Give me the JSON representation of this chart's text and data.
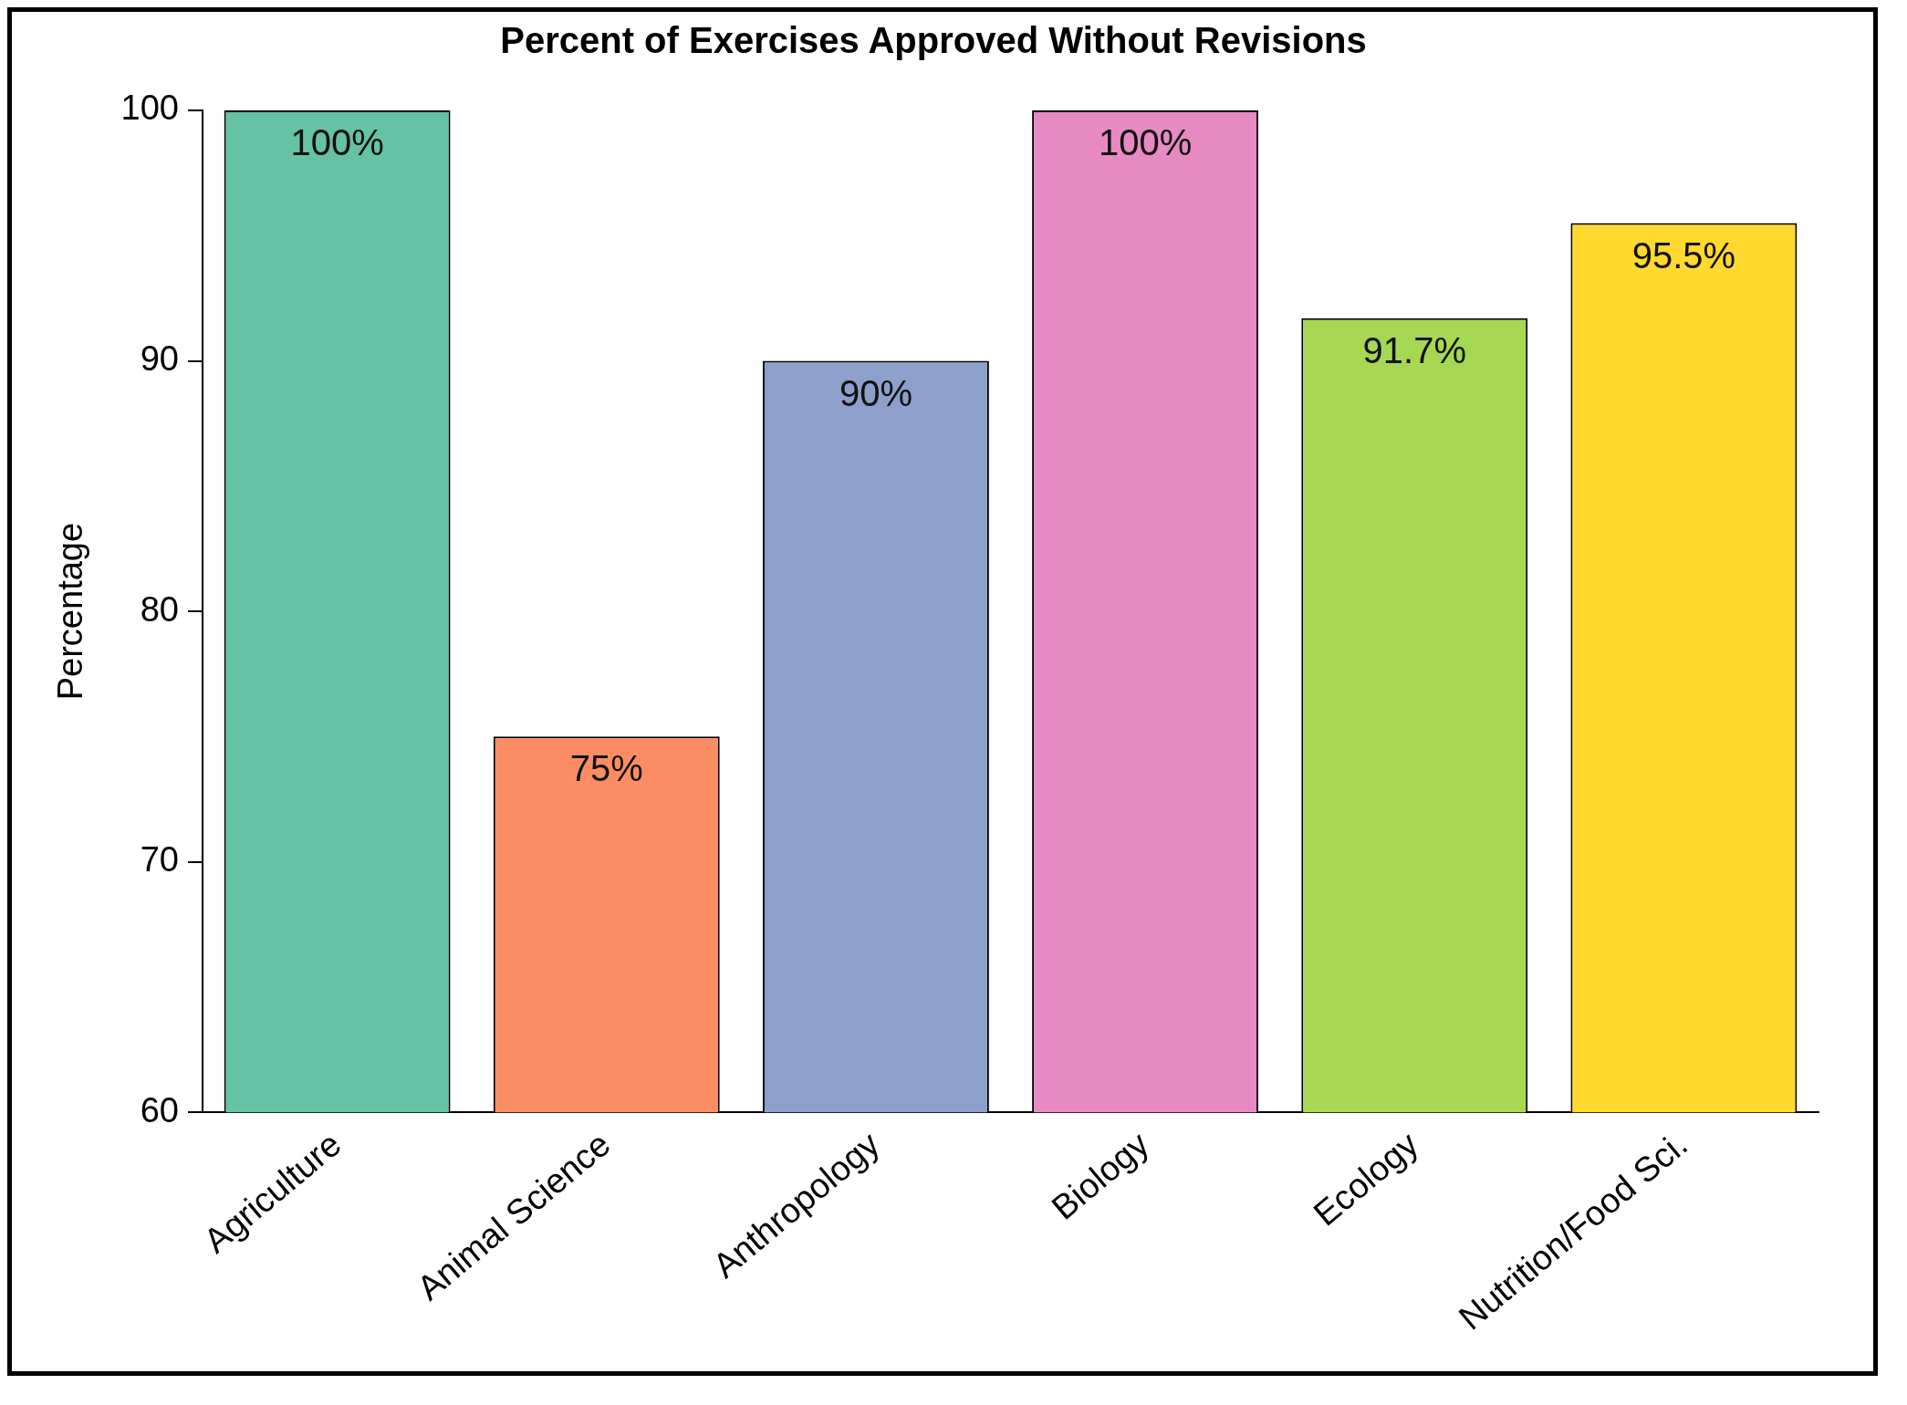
{
  "chart_data": {
    "type": "bar",
    "title": "Percent of Exercises Approved Without Revisions",
    "ylabel": "Percentage",
    "categories": [
      "Agriculture",
      "Animal Science",
      "Anthropology",
      "Biology",
      "Ecology",
      "Nutrition/Food Sci."
    ],
    "values": [
      100,
      75,
      90,
      100,
      91.7,
      95.5
    ],
    "value_labels": [
      "100%",
      "75%",
      "90%",
      "100%",
      "91.7%",
      "95.5%"
    ],
    "colors": [
      "#66c2a5",
      "#fc8d62",
      "#8da0cb",
      "#e78ac3",
      "#a6d854",
      "#ffd92f"
    ],
    "ylim": [
      60,
      100
    ],
    "yticks": [
      60,
      70,
      80,
      90,
      100
    ]
  }
}
